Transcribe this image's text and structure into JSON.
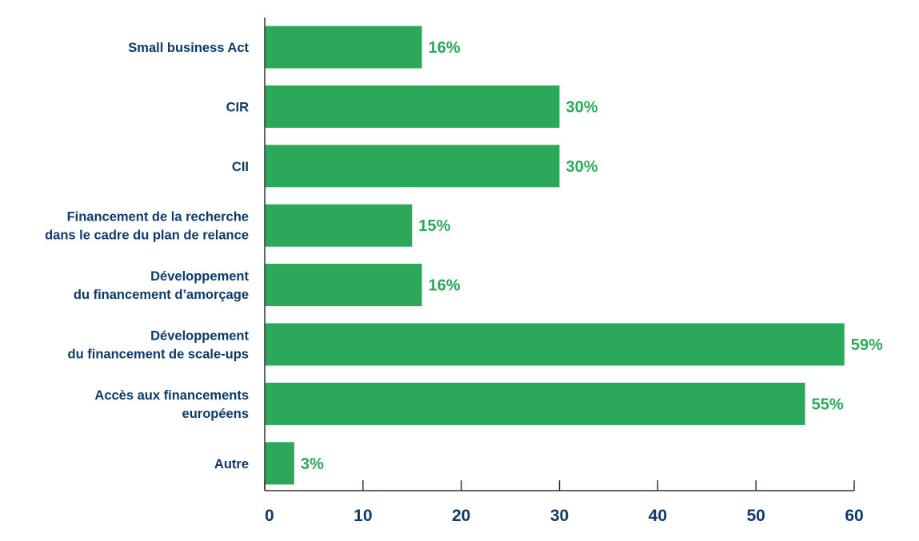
{
  "chart_data": {
    "type": "bar",
    "orientation": "horizontal",
    "categories": [
      [
        "Small business Act"
      ],
      [
        "CIR"
      ],
      [
        "CII"
      ],
      [
        "Financement de la recherche",
        "dans le cadre du plan de relance"
      ],
      [
        "Développement",
        "du financement d’amorçage"
      ],
      [
        "Développement",
        "du financement de scale-ups"
      ],
      [
        "Accès aux financements",
        "européens"
      ],
      [
        "Autre"
      ]
    ],
    "values": [
      16,
      30,
      30,
      15,
      16,
      59,
      55,
      3
    ],
    "value_labels": [
      "16%",
      "30%",
      "30%",
      "15%",
      "16%",
      "59%",
      "55%",
      "3%"
    ],
    "xlim": [
      0,
      60
    ],
    "xticks": [
      0,
      10,
      20,
      30,
      40,
      50,
      60
    ],
    "grid": false,
    "colors": {
      "bar": "#2ca85a",
      "value_text": "#2ca85a",
      "label_text": "#0d3a6b",
      "axis": "#333333"
    }
  }
}
